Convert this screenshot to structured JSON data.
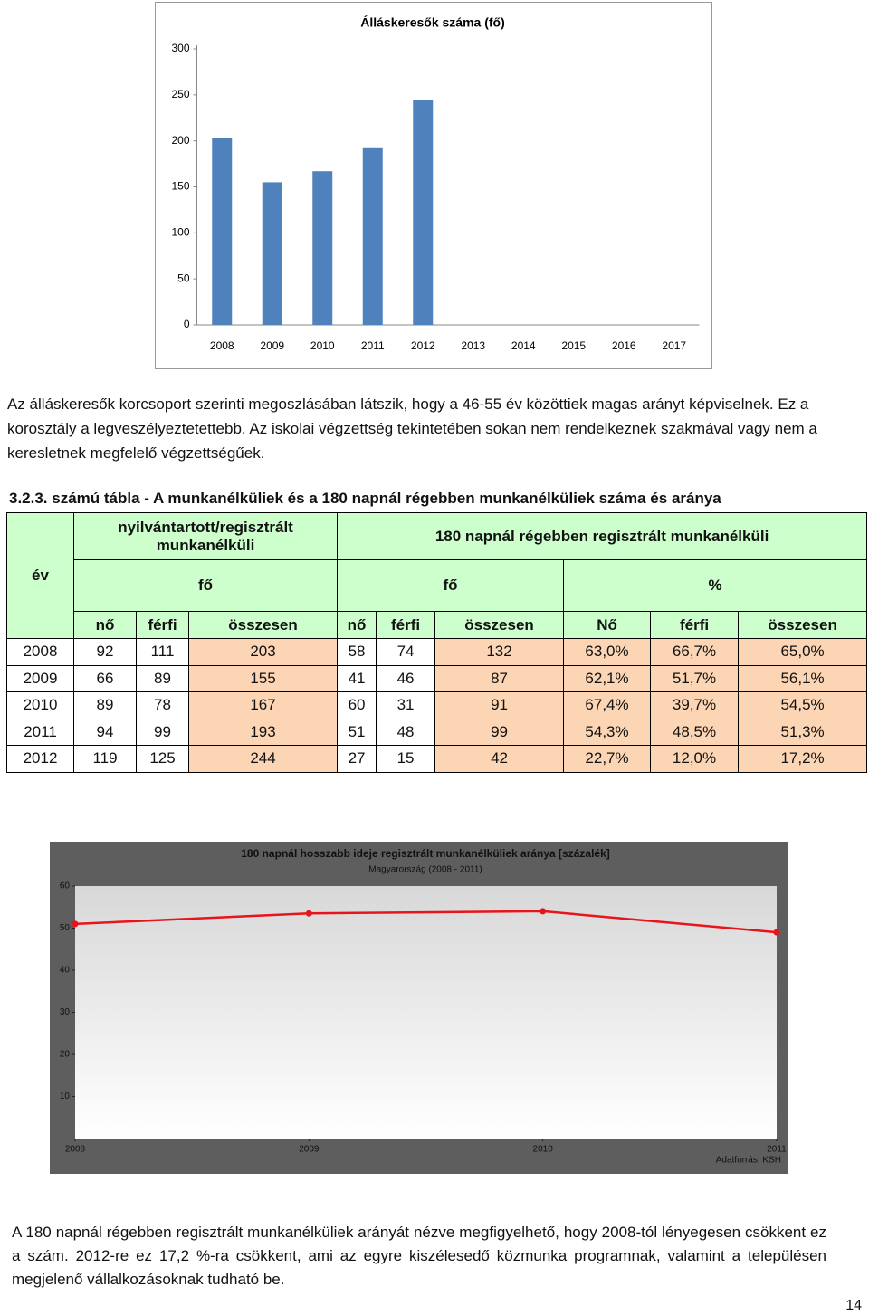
{
  "chart_data": [
    {
      "type": "bar",
      "title": "Álláskeresők száma (fő)",
      "categories": [
        "2008",
        "2009",
        "2010",
        "2011",
        "2012",
        "2013",
        "2014",
        "2015",
        "2016",
        "2017"
      ],
      "values": [
        203,
        155,
        167,
        193,
        244,
        null,
        null,
        null,
        null,
        null
      ],
      "color": "#4f81bd",
      "ylim": [
        0,
        300
      ],
      "yticks": [
        0,
        50,
        100,
        150,
        200,
        250,
        300
      ],
      "grid": false
    },
    {
      "type": "line",
      "title": "180 napnál hosszabb ideje regisztrált munkanélküliek aránya [százalék]",
      "subtitle": "Magyarország (2008 - 2011)",
      "source": "Adatforrás: KSH",
      "x": [
        2008,
        2009,
        2010,
        2011
      ],
      "values": [
        51,
        53.5,
        54,
        49
      ],
      "color": "#e8141b",
      "xlim": [
        2008,
        2011
      ],
      "xticks": [
        2008,
        2009,
        2010,
        2011
      ],
      "ylim": [
        0,
        60
      ],
      "yticks": [
        10,
        20,
        30,
        40,
        50,
        60
      ],
      "grid": false
    }
  ],
  "paragraphs": [
    "Az álláskeresők korcsoport szerinti megoszlásában látszik, hogy a 46-55 év közöttiek magas arányt képviselnek. Ez a korosztály a legveszélyeztetettebb. Az iskolai végzettség tekintetében sokan nem rendelkeznek szakmával vagy nem a keresletnek megfelelő végzettségűek."
  ],
  "table": {
    "caption": "3.2.3. számú tábla - A munkanélküliek és a 180 napnál régebben munkanélküliek száma és aránya",
    "header": {
      "year": "év",
      "group1": "nyilvántartott/regisztrált munkanélküli",
      "group2": "180 napnál régebben regisztrált munkanélküli",
      "units": [
        "fő",
        "fő",
        "%"
      ],
      "columns": [
        "nő",
        "férfi",
        "összesen",
        "nő",
        "férfi",
        "összesen",
        "Nő",
        "férfi",
        "összesen"
      ]
    },
    "rows": [
      [
        "2008",
        "92",
        "111",
        "203",
        "58",
        "74",
        "132",
        "63,0%",
        "66,7%",
        "65,0%"
      ],
      [
        "2009",
        "66",
        "89",
        "155",
        "41",
        "46",
        "87",
        "62,1%",
        "51,7%",
        "56,1%"
      ],
      [
        "2010",
        "89",
        "78",
        "167",
        "60",
        "31",
        "91",
        "67,4%",
        "39,7%",
        "54,5%"
      ],
      [
        "2011",
        "94",
        "99",
        "193",
        "51",
        "48",
        "99",
        "54,3%",
        "48,5%",
        "51,3%"
      ],
      [
        "2012",
        "119",
        "125",
        "244",
        "27",
        "15",
        "42",
        "22,7%",
        "12,0%",
        "17,2%"
      ]
    ]
  },
  "closing": "A 180 napnál régebben regisztrált munkanélküliek arányát nézve megfigyelhető, hogy 2008-tól lényegesen csökkent ez a szám. 2012-re ez 17,2 %-ra csökkent, ami az egyre kiszélesedő közmunka programnak, valamint a településen megjelenő vállalkozásoknak tudható be.",
  "page_number": "14"
}
